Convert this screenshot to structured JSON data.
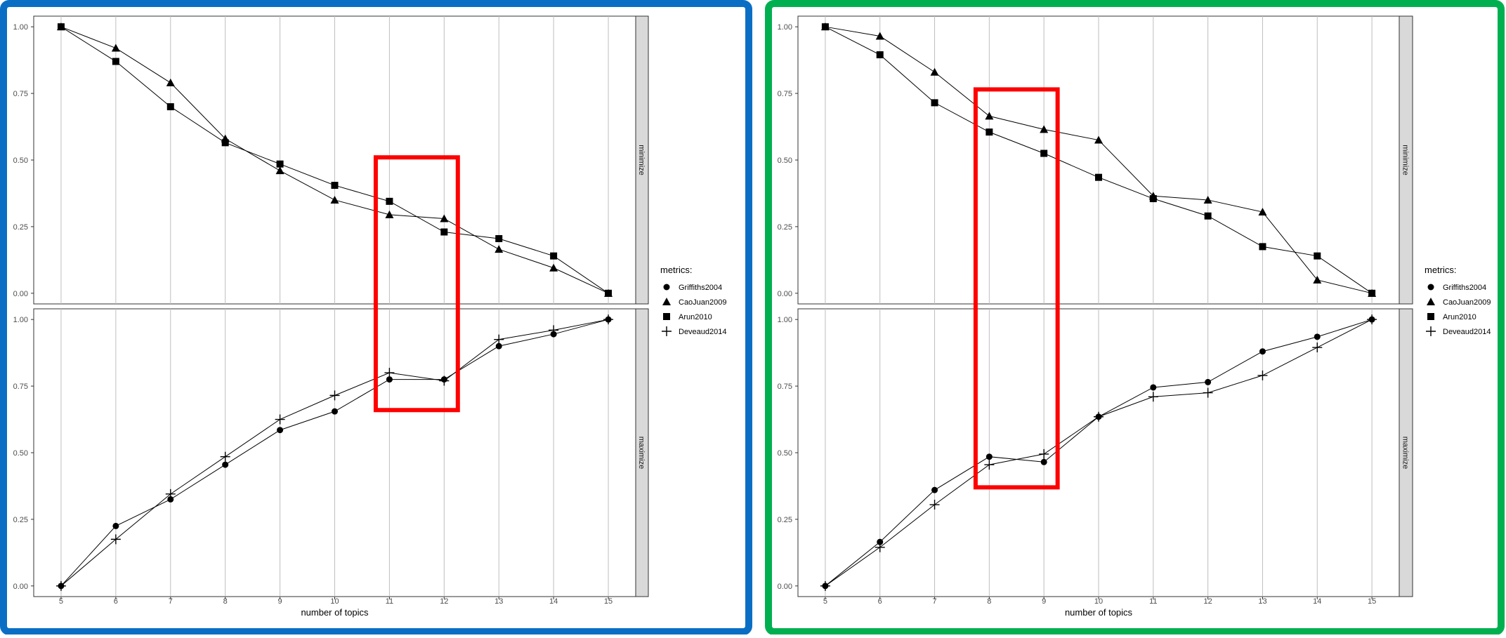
{
  "colors": {
    "left_frame": "#0a6fc4",
    "right_frame": "#00b050",
    "highlight": "#ff0000",
    "strip": "#d9d9d9",
    "grid": "#bebebe"
  },
  "legend": {
    "title": "metrics:",
    "items": [
      {
        "name": "Griffiths2004",
        "shape": "circle"
      },
      {
        "name": "CaoJuan2009",
        "shape": "triangle"
      },
      {
        "name": "Arun2010",
        "shape": "square"
      },
      {
        "name": "Deveaud2014",
        "shape": "plus"
      }
    ]
  },
  "chart_data": [
    {
      "type": "line",
      "xlabel": "number of topics",
      "x": [
        5,
        6,
        7,
        8,
        9,
        10,
        11,
        12,
        13,
        14,
        15
      ],
      "xlim": [
        4.5,
        15.5
      ],
      "ylim": [
        -0.04,
        1.04
      ],
      "yticks": [
        "0.00",
        "0.25",
        "0.50",
        "0.75",
        "1.00"
      ],
      "grid": true,
      "highlight": {
        "x_range": [
          10.75,
          12.25
        ],
        "y_from": [
          0.51,
          "minimize"
        ],
        "y_to": [
          0.66,
          "maximize"
        ]
      },
      "panels": [
        {
          "strip": "minimize",
          "series": [
            {
              "name": "CaoJuan2009",
              "shape": "triangle",
              "values": [
                1.0,
                0.92,
                0.79,
                0.58,
                0.46,
                0.35,
                0.295,
                0.28,
                0.165,
                0.095,
                0.0
              ]
            },
            {
              "name": "Arun2010",
              "shape": "square",
              "values": [
                1.0,
                0.87,
                0.7,
                0.565,
                0.485,
                0.405,
                0.345,
                0.23,
                0.205,
                0.14,
                0.0
              ]
            }
          ]
        },
        {
          "strip": "maximize",
          "series": [
            {
              "name": "Griffiths2004",
              "shape": "circle",
              "values": [
                0.0,
                0.225,
                0.325,
                0.455,
                0.585,
                0.655,
                0.775,
                0.775,
                0.9,
                0.945,
                1.0
              ]
            },
            {
              "name": "Deveaud2014",
              "shape": "plus",
              "values": [
                0.0,
                0.175,
                0.345,
                0.485,
                0.625,
                0.715,
                0.8,
                0.77,
                0.925,
                0.96,
                1.0
              ]
            }
          ]
        }
      ]
    },
    {
      "type": "line",
      "xlabel": "number of topics",
      "x": [
        5,
        6,
        7,
        8,
        9,
        10,
        11,
        12,
        13,
        14,
        15
      ],
      "xlim": [
        4.5,
        15.5
      ],
      "ylim": [
        -0.04,
        1.04
      ],
      "yticks": [
        "0.00",
        "0.25",
        "0.50",
        "0.75",
        "1.00"
      ],
      "grid": true,
      "highlight": {
        "x_range": [
          7.75,
          9.25
        ],
        "y_from": [
          0.765,
          "minimize"
        ],
        "y_to": [
          0.37,
          "maximize"
        ]
      },
      "panels": [
        {
          "strip": "minimize",
          "series": [
            {
              "name": "CaoJuan2009",
              "shape": "triangle",
              "values": [
                1.0,
                0.965,
                0.83,
                0.665,
                0.615,
                0.575,
                0.365,
                0.35,
                0.305,
                0.05,
                0.0
              ]
            },
            {
              "name": "Arun2010",
              "shape": "square",
              "values": [
                1.0,
                0.895,
                0.715,
                0.605,
                0.525,
                0.435,
                0.355,
                0.29,
                0.175,
                0.14,
                0.0
              ]
            }
          ]
        },
        {
          "strip": "maximize",
          "series": [
            {
              "name": "Griffiths2004",
              "shape": "circle",
              "values": [
                0.0,
                0.165,
                0.36,
                0.485,
                0.465,
                0.635,
                0.745,
                0.765,
                0.88,
                0.935,
                1.0
              ]
            },
            {
              "name": "Deveaud2014",
              "shape": "plus",
              "values": [
                0.0,
                0.145,
                0.305,
                0.455,
                0.495,
                0.635,
                0.71,
                0.725,
                0.79,
                0.895,
                1.0
              ]
            }
          ]
        }
      ]
    }
  ]
}
